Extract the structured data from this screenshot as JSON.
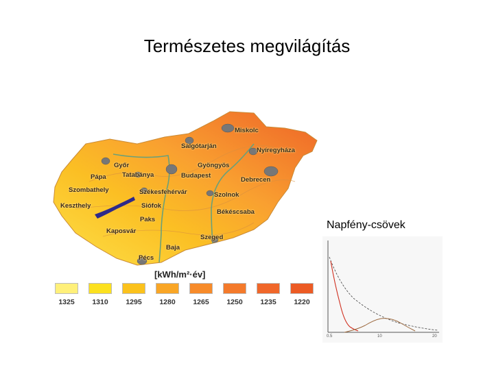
{
  "slide": {
    "title": "Természetes megvilágítás"
  },
  "map": {
    "cities": [
      {
        "name": "Miskolc",
        "icon": "city-marker-icon"
      },
      {
        "name": "Salgótarján",
        "icon": "city-marker-icon"
      },
      {
        "name": "Nyíregyháza",
        "icon": "city-marker-icon"
      },
      {
        "name": "Győr",
        "icon": "city-marker-icon"
      },
      {
        "name": "Gyöngyös",
        "icon": "city-marker-icon"
      },
      {
        "name": "Pápa",
        "icon": "city-marker-icon"
      },
      {
        "name": "Tatabánya",
        "icon": "city-marker-icon"
      },
      {
        "name": "Budapest",
        "icon": "city-marker-icon"
      },
      {
        "name": "Debrecen",
        "icon": "city-marker-icon"
      },
      {
        "name": "Szombathely",
        "icon": "city-marker-icon"
      },
      {
        "name": "Székesfehérvár",
        "icon": "city-marker-icon"
      },
      {
        "name": "Szolnok",
        "icon": "city-marker-icon"
      },
      {
        "name": "Keszthely",
        "icon": "city-marker-icon"
      },
      {
        "name": "Siófok",
        "icon": "city-marker-icon"
      },
      {
        "name": "Békéscsaba",
        "icon": "city-marker-icon"
      },
      {
        "name": "Paks",
        "icon": "city-marker-icon"
      },
      {
        "name": "Kaposvár",
        "icon": "city-marker-icon"
      },
      {
        "name": "Szeged",
        "icon": "city-marker-icon"
      },
      {
        "name": "Baja",
        "icon": "city-marker-icon"
      },
      {
        "name": "Pécs",
        "icon": "city-marker-icon"
      }
    ],
    "legend": {
      "unit": "[kWh/m²·év]",
      "items": [
        {
          "label": "1325",
          "color": "#fff07a"
        },
        {
          "label": "1310",
          "color": "#fce11f"
        },
        {
          "label": "1295",
          "color": "#fbc21c"
        },
        {
          "label": "1280",
          "color": "#f9a626"
        },
        {
          "label": "1265",
          "color": "#f78b2a"
        },
        {
          "label": "1250",
          "color": "#f47a2b"
        },
        {
          "label": "1235",
          "color": "#f0672a"
        },
        {
          "label": "1220",
          "color": "#ec5b24"
        }
      ]
    }
  },
  "tubes": {
    "label": "Napfény-csövek",
    "graph": {
      "x_ticks": [
        "0.5",
        "10",
        "20"
      ]
    }
  }
}
